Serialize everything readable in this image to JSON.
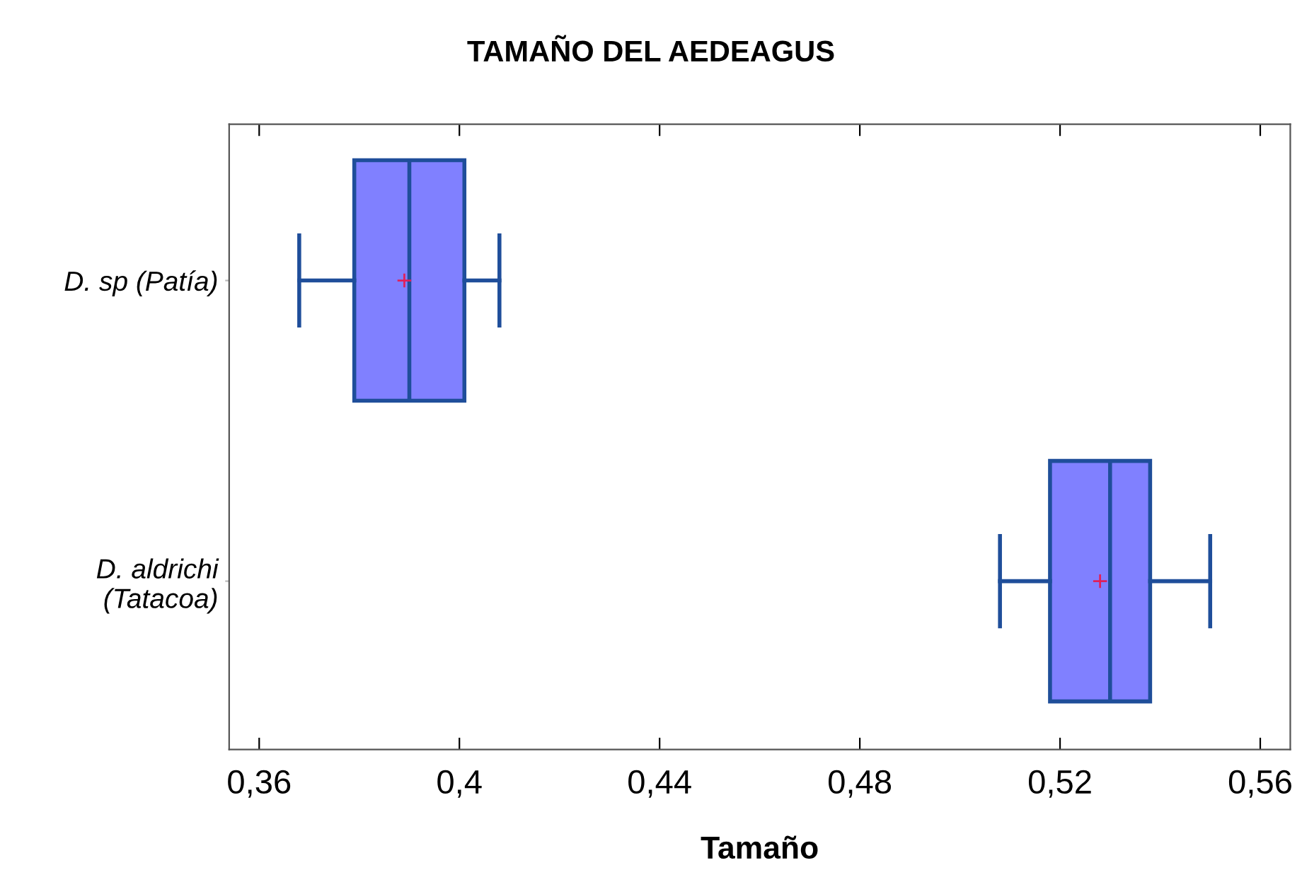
{
  "chart_data": {
    "type": "box",
    "title": "TAMAÑO DEL AEDEAGUS",
    "xlabel": "Tamaño",
    "orientation": "horizontal",
    "categories": [
      "D. sp (Patía)",
      "D. aldrichi\n(Tatacoa)"
    ],
    "series": [
      {
        "color": "#8080ff",
        "boxes": [
          {
            "low": 0.368,
            "q1": 0.379,
            "median": 0.39,
            "q3": 0.401,
            "high": 0.408,
            "mean": 0.389
          },
          {
            "low": 0.508,
            "q1": 0.518,
            "median": 0.53,
            "q3": 0.538,
            "high": 0.55,
            "mean": 0.528
          }
        ]
      }
    ],
    "xlim": [
      0.354,
      0.566
    ],
    "xticks": [
      {
        "value": 0.36,
        "label": "0,36"
      },
      {
        "value": 0.4,
        "label": "0,4"
      },
      {
        "value": 0.44,
        "label": "0,44"
      },
      {
        "value": 0.48,
        "label": "0,48"
      },
      {
        "value": 0.52,
        "label": "0,52"
      },
      {
        "value": 0.56,
        "label": "0,56"
      }
    ],
    "grid": false
  }
}
